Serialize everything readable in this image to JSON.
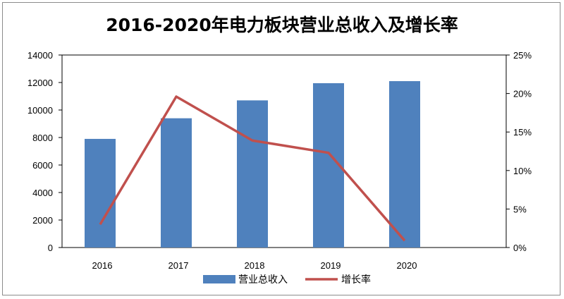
{
  "chart_data": {
    "type": "bar",
    "title": "2016-2020年电力板块营业总收入及增长率",
    "categories": [
      "2016",
      "2017",
      "2018",
      "2019",
      "2020"
    ],
    "series": [
      {
        "name": "营业总收入",
        "type": "bar",
        "axis": "left",
        "color": "#4f81bd",
        "values": [
          7900,
          9400,
          10700,
          11950,
          12100
        ]
      },
      {
        "name": "增长率",
        "type": "line",
        "axis": "right",
        "color": "#c0504d",
        "values": [
          3.0,
          19.6,
          13.9,
          12.3,
          0.9
        ]
      }
    ],
    "left_axis": {
      "min": 0,
      "max": 14000,
      "step": 2000,
      "ticks": [
        "0",
        "2000",
        "4000",
        "6000",
        "8000",
        "10000",
        "12000",
        "14000"
      ]
    },
    "right_axis": {
      "min": 0,
      "max": 25,
      "step": 5,
      "ticks": [
        "0%",
        "5%",
        "10%",
        "15%",
        "20%",
        "25%"
      ]
    },
    "legend_position": "bottom",
    "grid": false
  }
}
